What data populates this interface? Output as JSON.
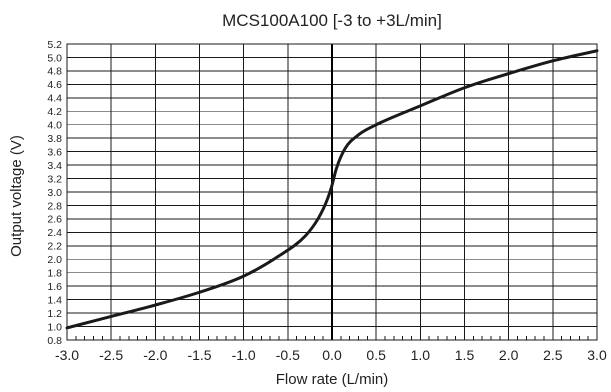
{
  "chart_data": {
    "type": "line",
    "title": "MCS100A100 [-3 to +3L/min]",
    "xlabel": "Flow rate (L/min)",
    "ylabel": "Output voltage (V)",
    "xlim": [
      -3.0,
      3.0
    ],
    "ylim": [
      0.8,
      5.2
    ],
    "x_ticks": [
      "-3.0",
      "-2.5",
      "-2.0",
      "-1.5",
      "-1.0",
      "-0.5",
      "0.0",
      "0.5",
      "1.0",
      "1.5",
      "2.0",
      "2.5",
      "3.0"
    ],
    "x_tick_values": [
      -3.0,
      -2.5,
      -2.0,
      -1.5,
      -1.0,
      -0.5,
      0.0,
      0.5,
      1.0,
      1.5,
      2.0,
      2.5,
      3.0
    ],
    "y_ticks": [
      "0.8",
      "1.0",
      "1.2",
      "1.4",
      "1.6",
      "1.8",
      "2.0",
      "2.2",
      "2.4",
      "2.6",
      "2.8",
      "3.0",
      "3.2",
      "3.4",
      "3.6",
      "3.8",
      "4.0",
      "4.2",
      "4.4",
      "4.6",
      "4.8",
      "5.0",
      "5.2"
    ],
    "y_tick_values": [
      0.8,
      1.0,
      1.2,
      1.4,
      1.6,
      1.8,
      2.0,
      2.2,
      2.4,
      2.6,
      2.8,
      3.0,
      3.2,
      3.4,
      3.6,
      3.8,
      4.0,
      4.2,
      4.4,
      4.6,
      4.8,
      5.0,
      5.2
    ],
    "grid": true,
    "x_minor_ticks_per_major": 5,
    "series": [
      {
        "x": [
          -3.0,
          -2.5,
          -2.0,
          -1.5,
          -1.0,
          -0.6,
          -0.3,
          -0.15,
          -0.05,
          0.0,
          0.05,
          0.15,
          0.3,
          0.5,
          1.0,
          1.5,
          2.0,
          2.5,
          3.0
        ],
        "y": [
          0.98,
          1.15,
          1.32,
          1.51,
          1.75,
          2.05,
          2.35,
          2.62,
          2.9,
          3.1,
          3.35,
          3.65,
          3.85,
          4.0,
          4.28,
          4.55,
          4.76,
          4.95,
          5.1
        ]
      }
    ],
    "colors": {
      "line": "#1a1a1a",
      "grid": "#1a1a1a",
      "zero_line": "#000000"
    }
  }
}
